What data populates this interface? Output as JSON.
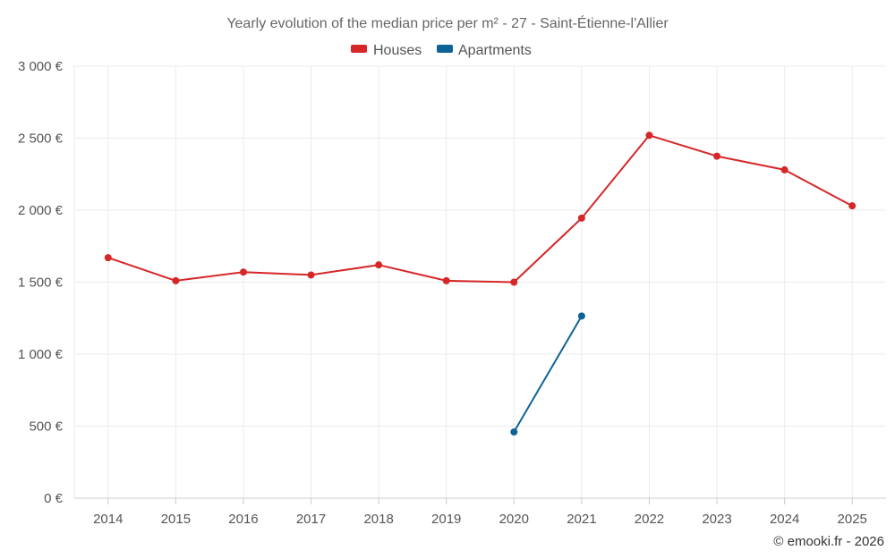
{
  "chart_data": {
    "type": "line",
    "title": "Yearly evolution of the median price per m² - 27 - Saint-Étienne-l'Allier",
    "categories": [
      "2014",
      "2015",
      "2016",
      "2017",
      "2018",
      "2019",
      "2020",
      "2021",
      "2022",
      "2023",
      "2024",
      "2025"
    ],
    "y_tick_labels": [
      "0 €",
      "500 €",
      "1 000 €",
      "1 500 €",
      "2 000 €",
      "2 500 €",
      "3 000 €"
    ],
    "y_ticks": [
      0,
      500,
      1000,
      1500,
      2000,
      2500,
      3000
    ],
    "ylim": [
      0,
      3000
    ],
    "xlabel": "",
    "ylabel": "",
    "grid": true,
    "legend_position": "top-center",
    "series": [
      {
        "name": "Houses",
        "color": "#d62728",
        "values": [
          1670,
          1510,
          1570,
          1550,
          1620,
          1510,
          1500,
          1945,
          2520,
          2375,
          2280,
          2030
        ]
      },
      {
        "name": "Apartments",
        "color": "#0e6396",
        "values": [
          null,
          null,
          null,
          null,
          null,
          null,
          460,
          1265,
          null,
          null,
          null,
          null
        ]
      }
    ]
  },
  "credit": "© emooki.fr - 2026"
}
